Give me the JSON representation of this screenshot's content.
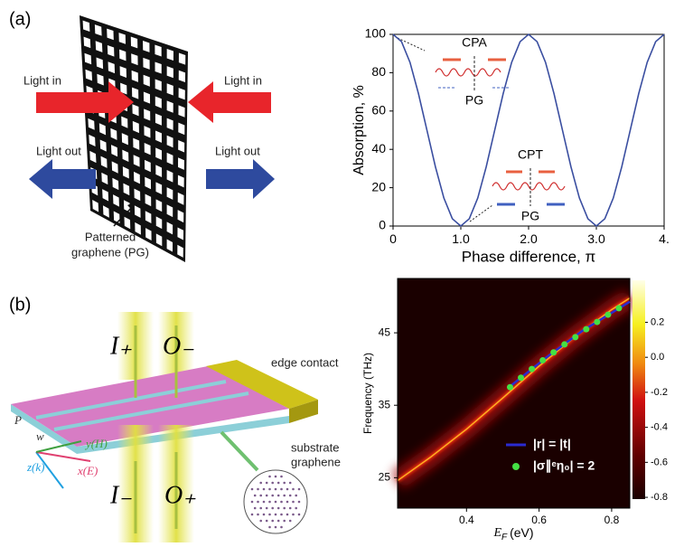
{
  "panel_labels": [
    "(a)",
    "(b)"
  ],
  "diagram_a": {
    "light_in_left": "Light in",
    "light_in_right": "Light in",
    "light_out_left": "Light out",
    "light_out_right": "Light out",
    "pg_label": [
      "Patterned",
      "graphene (PG)"
    ]
  },
  "diagram_b": {
    "beams": [
      "I₊",
      "O₋",
      "I₋",
      "O₊"
    ],
    "edge_contact": "edge contact",
    "substrate": "substrate",
    "graphene": "graphene",
    "axes": [
      "P",
      "w",
      "y(H)",
      "z(k)",
      "x(E)"
    ]
  },
  "chart_data": [
    {
      "type": "line",
      "xlabel": "Phase difference, π",
      "ylabel": "Absorption, %",
      "color": "#3a4ea0",
      "x": [
        0,
        0.125,
        0.25,
        0.375,
        0.5,
        0.625,
        0.75,
        0.875,
        1,
        1.125,
        1.25,
        1.375,
        1.5,
        1.625,
        1.75,
        1.875,
        2,
        2.125,
        2.25,
        2.375,
        2.5,
        2.625,
        2.75,
        2.875,
        3,
        3.125,
        3.25,
        3.375,
        3.5,
        3.625,
        3.75,
        3.875,
        4
      ],
      "values": [
        100,
        96.2,
        85.4,
        69.1,
        50,
        30.9,
        14.6,
        3.8,
        0,
        3.8,
        14.6,
        30.9,
        50,
        69.1,
        85.4,
        96.2,
        100,
        96.2,
        85.4,
        69.1,
        50,
        30.9,
        14.6,
        3.8,
        0,
        3.8,
        14.6,
        30.9,
        50,
        69.1,
        85.4,
        96.2,
        100
      ],
      "xlim": [
        0,
        4
      ],
      "ylim": [
        0,
        100
      ],
      "xticks": [
        0,
        {
          "value": 1,
          "label": "1.0"
        },
        {
          "value": 2,
          "label": "2.0"
        },
        {
          "value": 3,
          "label": "3.0"
        },
        {
          "value": 4,
          "label": "4."
        }
      ],
      "yticks": [
        0,
        20,
        40,
        60,
        80,
        100
      ],
      "annotations": [
        "CPA",
        "PG",
        "CPT",
        "PG"
      ]
    },
    {
      "type": "heatmap",
      "ylabel": "Frequency (THz)",
      "xlabel": {
        "symbol": "E",
        "subscript": "F",
        "unit": "(eV)"
      },
      "xlim": [
        0.21,
        0.85
      ],
      "ylim": [
        20.8,
        52.5
      ],
      "xticks": [
        0.4,
        0.6,
        0.8
      ],
      "yticks": [
        25,
        35,
        45
      ],
      "colorbar": {
        "lim": [
          -0.81,
          0.44
        ],
        "ticks": [
          0.2,
          {
            "value": 0,
            "label": "0.0"
          },
          -0.2,
          -0.4,
          -0.6,
          -0.8
        ]
      },
      "series": [
        {
          "name": "|r| = |t|",
          "type": "line",
          "color": "#2a2ad0",
          "x": [
            0.52,
            0.62,
            0.72,
            0.85
          ],
          "values": [
            37.6,
            41.6,
            45.3,
            49.3
          ]
        },
        {
          "name": "|σ∥ᵉη₀| = 2",
          "type": "scatter",
          "color": "#44e044",
          "x": [
            0.52,
            0.55,
            0.58,
            0.61,
            0.64,
            0.67,
            0.7,
            0.73,
            0.76,
            0.79,
            0.82
          ],
          "values": [
            37.5,
            38.8,
            40,
            41.2,
            42.3,
            43.4,
            44.4,
            45.5,
            46.5,
            47.5,
            48.4
          ]
        }
      ]
    }
  ]
}
